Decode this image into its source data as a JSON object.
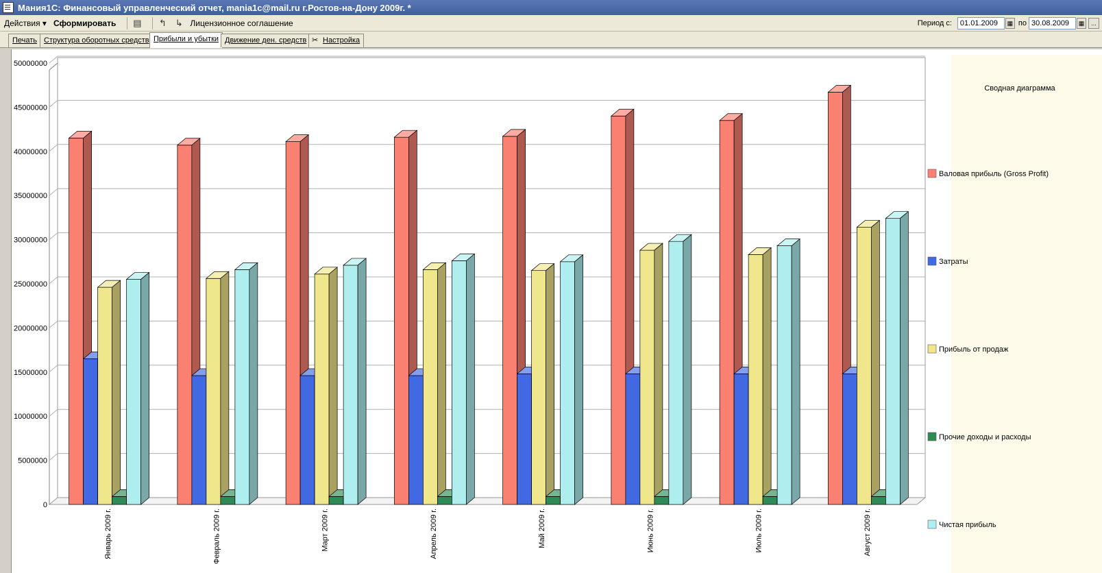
{
  "window": {
    "title": "Мания1С: Финансовый управленческий отчет, mania1c@mail.ru г.Ростов-на-Дону 2009г. *"
  },
  "toolbar": {
    "actions_label": "Действия ▾",
    "generate_label": "Сформировать",
    "license_label": "Лицензионное соглашение",
    "period_label": "Период с:",
    "date_from": "01.01.2009",
    "to_label": "по",
    "date_to": "30.08.2009",
    "more_label": "..."
  },
  "tabs": [
    {
      "label": "Печать"
    },
    {
      "label": "Структура оборотных средств"
    },
    {
      "label": "Прибыли и убытки"
    },
    {
      "label": "Движение ден. средств"
    },
    {
      "label": "Настройка"
    }
  ],
  "active_tab": 2,
  "colors": {
    "gross_profit": "#fa8072",
    "costs": "#4169e1",
    "sales_profit": "#f0e68c",
    "other": "#2e8b57",
    "net_profit": "#afeeee"
  },
  "chart_data": {
    "type": "bar",
    "title": "Сводная диаграмма",
    "categories": [
      "Январь 2009 г.",
      "Февраль 2009 г.",
      "Март 2009 г.",
      "Апрель 2009 г.",
      "Май 2009 г.",
      "Июнь 2009 г.",
      "Июль 2009 г.",
      "Август 2009 г."
    ],
    "series": [
      {
        "name": "Валовая прибыль (Gross Profit)",
        "color": "#fa8072",
        "values": [
          41500000,
          40700000,
          41100000,
          41600000,
          41700000,
          44000000,
          43500000,
          46700000
        ]
      },
      {
        "name": "Затраты",
        "color": "#4169e1",
        "values": [
          16500000,
          14600000,
          14600000,
          14600000,
          14800000,
          14800000,
          14800000,
          14800000
        ]
      },
      {
        "name": "Прибыль от продаж",
        "color": "#f0e68c",
        "values": [
          24600000,
          25600000,
          26100000,
          26600000,
          26500000,
          28800000,
          28300000,
          31400000
        ]
      },
      {
        "name": "Прочие доходы и расходы",
        "color": "#2e8b57",
        "values": [
          900000,
          900000,
          900000,
          900000,
          900000,
          900000,
          900000,
          900000
        ]
      },
      {
        "name": "Чистая прибыль",
        "color": "#afeeee",
        "values": [
          25500000,
          26600000,
          27100000,
          27600000,
          27500000,
          29800000,
          29300000,
          32400000
        ]
      }
    ],
    "yticks": [
      "0",
      "5000000",
      "10000000",
      "15000000",
      "20000000",
      "25000000",
      "30000000",
      "35000000",
      "40000000",
      "45000000",
      "50000000"
    ],
    "ylim": [
      0,
      50000000
    ],
    "grid": true,
    "legend": "right"
  }
}
